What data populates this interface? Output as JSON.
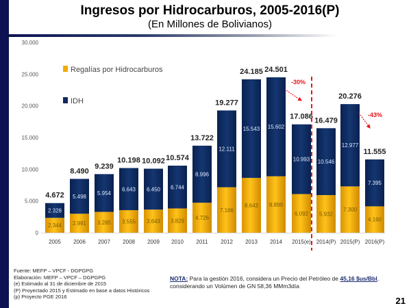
{
  "slide": {
    "title": "Ingresos por Hidrocarburos, 2005-2016(P)",
    "subtitle": "(En Millones de Bolivianos)",
    "page_number": "21",
    "colors": {
      "sidebar": "#0d1352",
      "regalias": "#f2ad00",
      "idh": "#0f2a5e",
      "annotation": "#e8141a"
    }
  },
  "footnotes": [
    "Fuente: MEFP – VPCF - DGPGPG",
    "Elaboración: MEFP – VPCF – DGPGPG",
    "(e) Estimado al 31 de diciembre de 2015",
    "(P) Proyectado 2015 y Estimado en base a datos Históricos",
    "(p) Proyecto PGE 2016"
  ],
  "note": {
    "label": "NOTA:",
    "text_1": " Para la gestión 2016, considera un Precio del Petróleo de ",
    "price": "45,16 $us/Bbl",
    "text_2": ", considerando un Volúmen de GN 58,36 MMm3día"
  },
  "chart_data": {
    "type": "bar",
    "stacked": true,
    "title": "Ingresos por Hidrocarburos, 2005-2016(P)",
    "subtitle": "(En Millones de Bolivianos)",
    "xlabel": "",
    "ylabel": "",
    "ylim": [
      0,
      30000
    ],
    "yticks": [
      0,
      5000,
      10000,
      15000,
      20000,
      25000,
      30000
    ],
    "ytick_labels": [
      "0",
      "5.000",
      "10.000",
      "15.000",
      "20.000",
      "25.000",
      "30.000"
    ],
    "grid": false,
    "legend_position": "top-left",
    "categories": [
      "2005",
      "2006",
      "2007",
      "2008",
      "2009",
      "2010",
      "2011",
      "2012",
      "2013",
      "2014",
      "2015(e)",
      "2014(P)",
      "2015(P)",
      "2016(P)"
    ],
    "series": [
      {
        "name": "Regalías por Hidrocarburos",
        "color": "#f2ad00",
        "values": [
          2344,
          2991,
          3285,
          3555,
          3643,
          3829,
          4726,
          7166,
          8643,
          8899,
          6092,
          5932,
          7300,
          4160
        ],
        "labels": [
          "2.344",
          "2.991",
          "3.285",
          "3.555",
          "3.643",
          "3.829",
          "4.726",
          "7.166",
          "8.643",
          "8.899",
          "6.092",
          "5.932",
          "7.300",
          "4.160"
        ]
      },
      {
        "name": "IDH",
        "color": "#0f2a5e",
        "values": [
          2328,
          5498,
          5954,
          6643,
          6450,
          6744,
          8996,
          12111,
          15543,
          15602,
          10993,
          10546,
          12977,
          7395
        ],
        "labels": [
          "2.328",
          "5.498",
          "5.954",
          "6.643",
          "6.450",
          "6.744",
          "8.996",
          "12.111",
          "15.543",
          "15.602",
          "10.993",
          "10.546",
          "12.977",
          "7.395"
        ]
      }
    ],
    "totals": [
      4672,
      8490,
      9239,
      10198,
      10092,
      10574,
      13722,
      19277,
      24185,
      24501,
      17086,
      16479,
      20276,
      11555
    ],
    "total_labels": [
      "4.672",
      "8.490",
      "9.239",
      "10.198",
      "10.092",
      "10.574",
      "13.722",
      "19.277",
      "24.185",
      "24.501",
      "17.086",
      "16.479",
      "20.276",
      "11.555"
    ],
    "annotations": [
      {
        "text": "-30%",
        "from_category": "2014",
        "to_category": "2015(e)",
        "type": "arrow"
      },
      {
        "text": "-43%",
        "from_category": "2015(P)",
        "to_category": "2016(P)",
        "type": "arrow"
      }
    ],
    "divider_after_category": "2015(e)"
  }
}
